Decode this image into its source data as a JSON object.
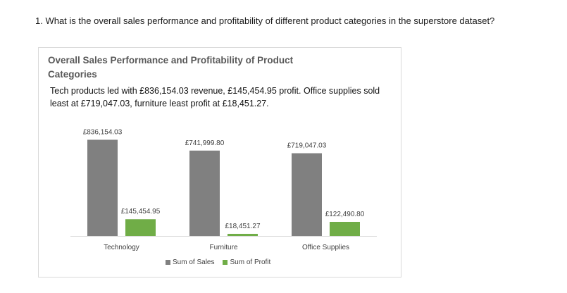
{
  "question": "1. What is the overall sales performance and profitability of different product categories in the superstore dataset?",
  "card": {
    "title": "Overall Sales Performance and Profitability of Product Categories",
    "description": "Tech products led with £836,154.03 revenue, £145,454.95 profit. Office supplies sold least at £719,047.03, furniture least profit at £18,451.27."
  },
  "colors": {
    "sales": "#808080",
    "profit": "#70ad47",
    "axis": "#d9d9d9",
    "label": "#404040"
  },
  "chart_data": {
    "type": "bar",
    "categories": [
      "Technology",
      "Furniture",
      "Office Supplies"
    ],
    "series": [
      {
        "name": "Sum of Sales",
        "values": [
          836154.03,
          741999.8,
          719047.03
        ],
        "labels": [
          "£836,154.03",
          "£741,999.80",
          "£719,047.03"
        ],
        "color": "#808080"
      },
      {
        "name": "Sum of Profit",
        "values": [
          145454.95,
          18451.27,
          122490.8
        ],
        "labels": [
          "£145,454.95",
          "£18,451.27",
          "£122,490.80"
        ],
        "color": "#70ad47"
      }
    ],
    "ylim": [
      0,
      900000
    ],
    "grid": false,
    "legend": "bottom"
  }
}
